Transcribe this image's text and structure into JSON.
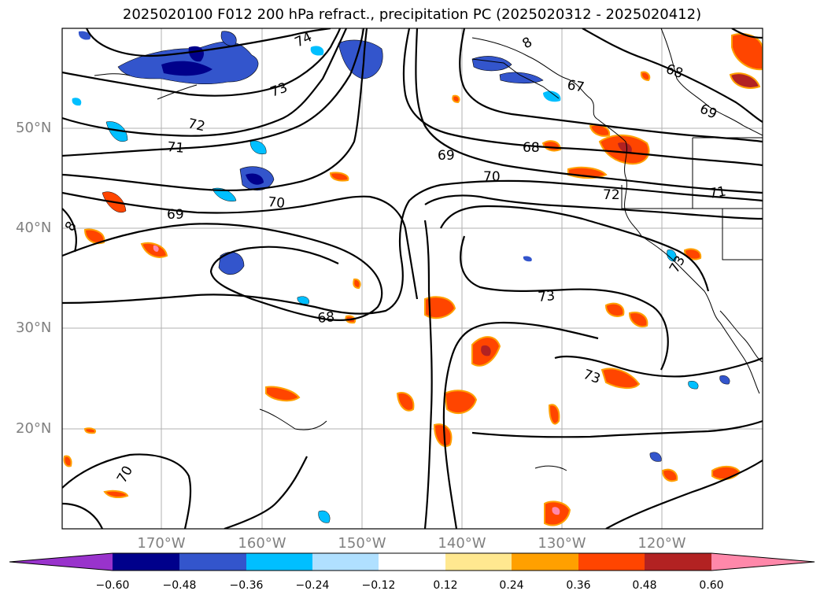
{
  "title": "2025020100 F012 200 hPa refract., precipitation PC (2025020312 - 2025020412)",
  "map": {
    "lat_labels": [
      "50°N",
      "40°N",
      "30°N",
      "20°N"
    ],
    "lon_labels": [
      "170°W",
      "160°W",
      "150°W",
      "140°W",
      "130°W",
      "120°W"
    ],
    "contour_labels": [
      "74",
      "73",
      "72",
      "71",
      "70",
      "69",
      "68",
      "67",
      "69",
      "69",
      "68",
      "70",
      "72",
      "71",
      "73",
      "73",
      "68",
      "70",
      "73",
      "8",
      "8"
    ],
    "colors": {
      "contour": "#000000",
      "coastline": "#000000",
      "grid": "#b0b0b0"
    }
  },
  "colorbar": {
    "tick_labels": [
      "−0.60",
      "−0.48",
      "−0.36",
      "−0.24",
      "−0.12",
      "0.12",
      "0.24",
      "0.36",
      "0.48",
      "0.60"
    ],
    "colors": [
      "#9933cc",
      "#00008b",
      "#3355cc",
      "#00bfff",
      "#b0e0ff",
      "#ffffff",
      "#ffe890",
      "#ffa000",
      "#ff4500",
      "#b22222",
      "#ff88aa"
    ]
  }
}
